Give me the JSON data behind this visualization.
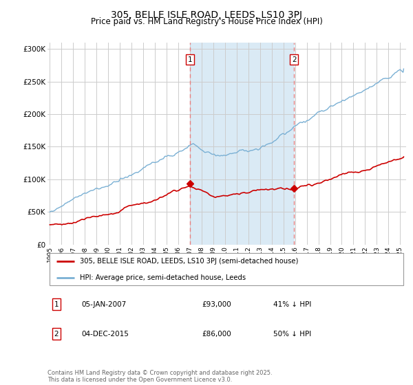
{
  "title": "305, BELLE ISLE ROAD, LEEDS, LS10 3PJ",
  "subtitle": "Price paid vs. HM Land Registry's House Price Index (HPI)",
  "ylabel_ticks": [
    "£0",
    "£50K",
    "£100K",
    "£150K",
    "£200K",
    "£250K",
    "£300K"
  ],
  "ytick_vals": [
    0,
    50000,
    100000,
    150000,
    200000,
    250000,
    300000
  ],
  "ylim": [
    0,
    310000
  ],
  "xlim_start": 1994.8,
  "xlim_end": 2025.5,
  "point1_x": 2007.02,
  "point1_y": 93000,
  "point2_x": 2015.92,
  "point2_y": 86000,
  "legend_line1": "305, BELLE ISLE ROAD, LEEDS, LS10 3PJ (semi-detached house)",
  "legend_line2": "HPI: Average price, semi-detached house, Leeds",
  "footer": "Contains HM Land Registry data © Crown copyright and database right 2025.\nThis data is licensed under the Open Government Licence v3.0.",
  "color_red": "#cc0000",
  "color_blue": "#7ab0d4",
  "color_shade": "#daeaf5",
  "grid_color": "#cccccc",
  "vline_color": "#e88080"
}
